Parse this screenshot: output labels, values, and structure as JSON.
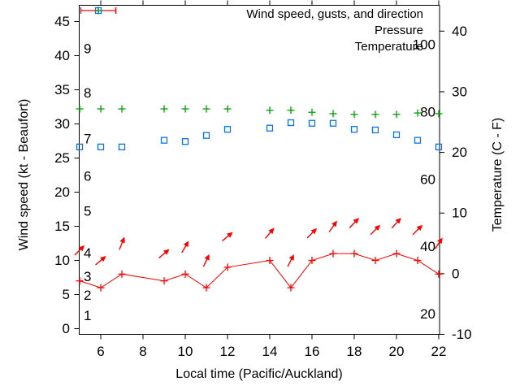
{
  "colors": {
    "wind": "#ff0000",
    "pressure": "#00a000",
    "temperature": "#0a73e8",
    "axis": "#000000",
    "background": "#ffffff"
  },
  "legend": {
    "entries": [
      {
        "label": "Wind speed, gusts, and direction",
        "series": "wind",
        "sample": "errorbar-line-with-plus"
      },
      {
        "label": "Pressure",
        "series": "pressure",
        "sample": "plus-marker"
      },
      {
        "label": "Temperature",
        "series": "temperature",
        "sample": "open-square-marker"
      }
    ],
    "position": "top-right-inside"
  },
  "chart_data": {
    "type": "line",
    "title": "",
    "xlabel": "Local time (Pacific/Auckland)",
    "ylabel": "Wind speed (kt - Beaufort)",
    "y2label": "Temperature (C - F)",
    "grid": false,
    "xlim": [
      4.98,
      22.04
    ],
    "ylim_left": [
      -0.83,
      47.38
    ],
    "ylim_right": [
      -10.0,
      44.26
    ],
    "x_ticks": [
      6,
      8,
      10,
      12,
      14,
      16,
      18,
      20,
      22
    ],
    "y_ticks_left": [
      0,
      5,
      10,
      15,
      20,
      25,
      30,
      35,
      40,
      45
    ],
    "y_ticks_right": [
      -10,
      0,
      10,
      20,
      30,
      40
    ],
    "missing_hours": [
      8,
      13
    ],
    "x": [
      5,
      6,
      7,
      9,
      10,
      11,
      12,
      14,
      15,
      16,
      17,
      18,
      19,
      20,
      21,
      22
    ],
    "series": [
      {
        "name": "wind_speed_kt",
        "axis": "left",
        "marker": "plus",
        "line": true,
        "values": [
          7,
          6,
          8,
          7,
          8,
          6,
          9,
          10,
          6,
          10,
          11,
          11,
          10,
          11,
          10,
          8
        ]
      },
      {
        "name": "wind_gust_kt_direction_arrows",
        "axis": "left",
        "marker": "arrow",
        "line": false,
        "values": [
          11.5,
          10,
          12.5,
          11,
          12,
          10,
          13.5,
          14,
          10,
          14,
          15,
          15.5,
          14.5,
          15.5,
          14.5,
          12.5
        ],
        "arrow_angles_deg_from_east": [
          45,
          40,
          68,
          40,
          60,
          65,
          40,
          50,
          63,
          45,
          55,
          47,
          45,
          48,
          45,
          56
        ]
      },
      {
        "name": "pressure_plotted_on_left_scale",
        "axis": "left",
        "marker": "plus",
        "line": false,
        "values": [
          32.2,
          32.2,
          32.2,
          32.2,
          32.2,
          32.2,
          32.2,
          32.0,
          32.0,
          31.7,
          31.5,
          31.4,
          31.4,
          31.4,
          31.6,
          31.5
        ]
      },
      {
        "name": "temperature_C",
        "axis": "right",
        "marker": "open-square",
        "line": false,
        "values": [
          20.9,
          20.9,
          20.9,
          22.0,
          21.8,
          22.8,
          23.8,
          24.0,
          24.9,
          24.8,
          24.8,
          23.8,
          23.7,
          22.9,
          22.0,
          20.9
        ]
      }
    ],
    "beaufort_scale_labels": [
      {
        "text": "9",
        "kt": 41.0
      },
      {
        "text": "8",
        "kt": 34.5
      },
      {
        "text": "7",
        "kt": 27.8
      },
      {
        "text": "6",
        "kt": 22.3
      },
      {
        "text": "5",
        "kt": 17.2
      },
      {
        "text": "4",
        "kt": 11.1
      },
      {
        "text": "3",
        "kt": 7.6
      },
      {
        "text": "2",
        "kt": 4.9
      },
      {
        "text": "1",
        "kt": 1.9
      }
    ],
    "fahrenheit_scale_labels": [
      {
        "text": "100",
        "F": 100
      },
      {
        "text": "80",
        "F": 80
      },
      {
        "text": "60",
        "F": 60
      },
      {
        "text": "40",
        "F": 40
      },
      {
        "text": "20",
        "F": 20
      }
    ]
  }
}
